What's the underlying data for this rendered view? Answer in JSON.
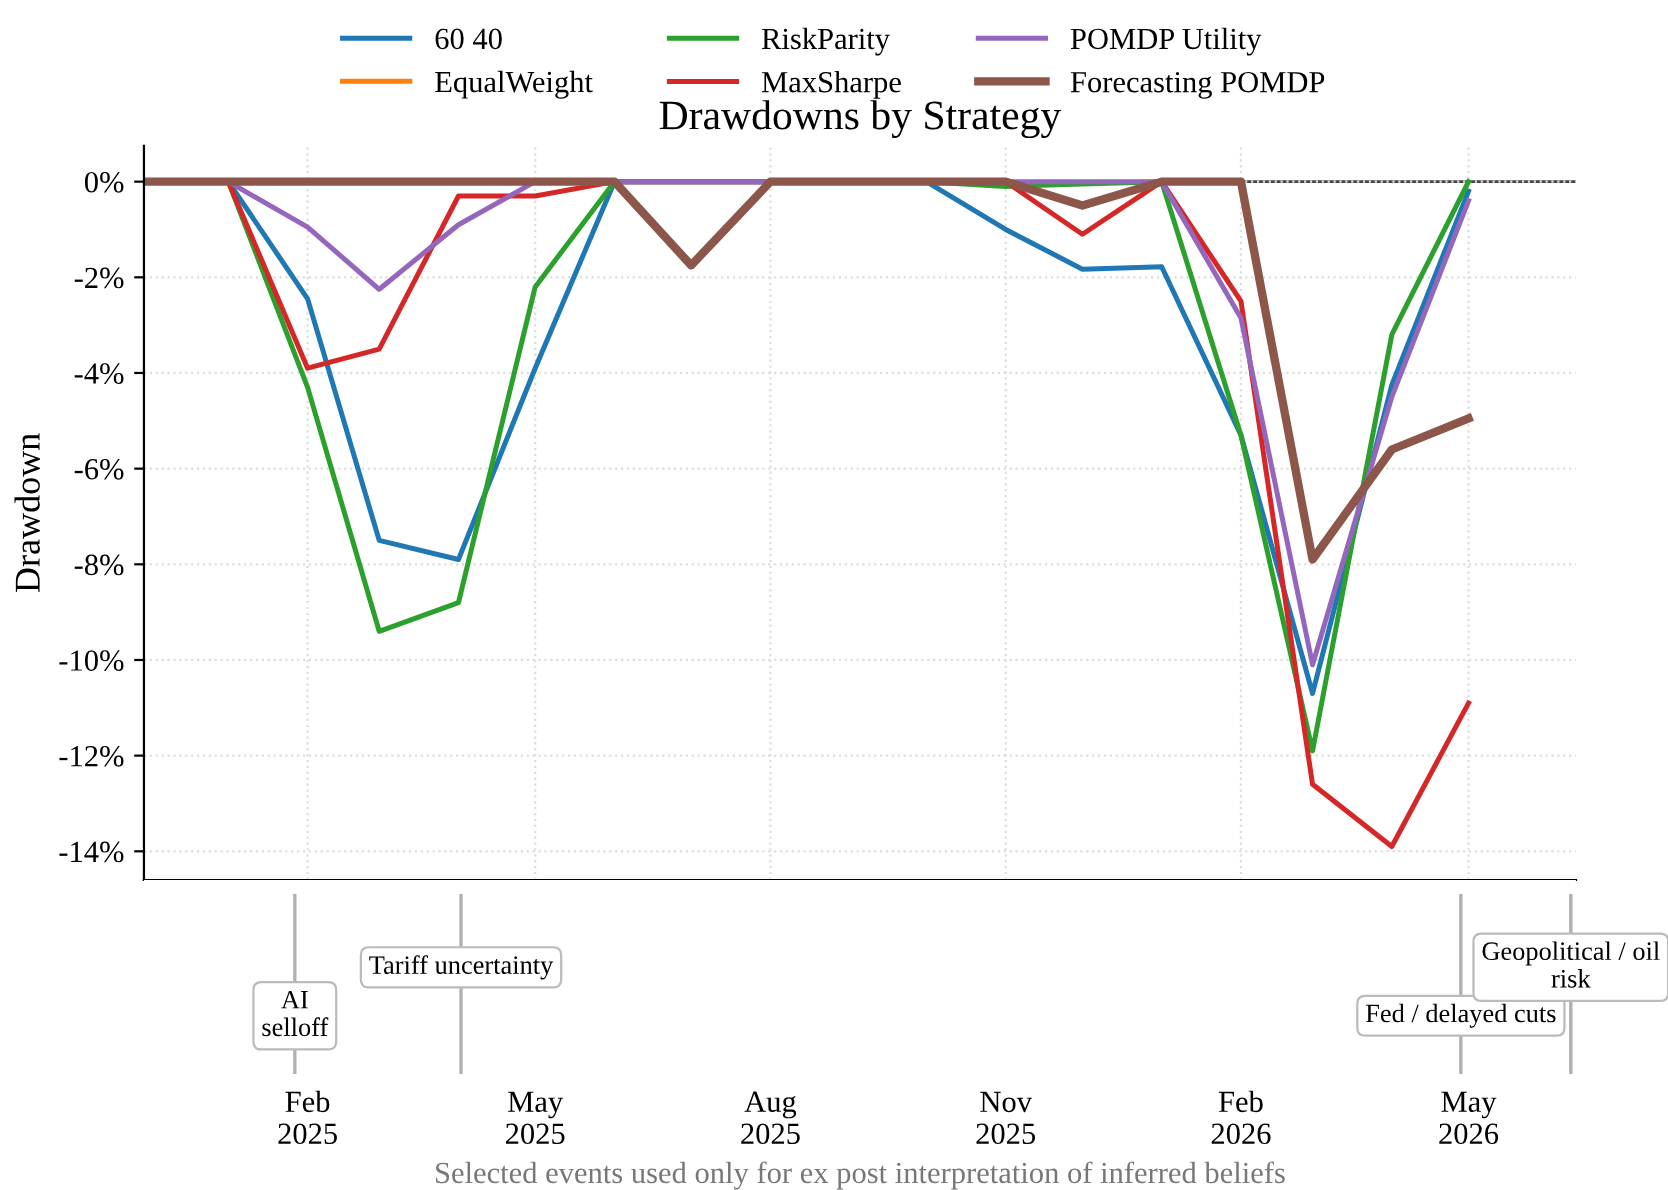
{
  "chart_data": {
    "type": "line",
    "title": "Drawdowns by Strategy",
    "ylabel": "Drawdown",
    "xlabel": "Selected events used only for ex post interpretation of inferred beliefs",
    "x": [
      "2024-12",
      "2025-01",
      "2025-02",
      "2025-03",
      "2025-04",
      "2025-05",
      "2025-06",
      "2025-07",
      "2025-08",
      "2025-09",
      "2025-10",
      "2025-11",
      "2025-12",
      "2026-01",
      "2026-02",
      "2026-03",
      "2026-04",
      "2026-05"
    ],
    "series": [
      {
        "name": "60 40",
        "color": "#1f77b4",
        "values": [
          0,
          0,
          -2.45,
          -7.5,
          -7.9,
          -3.9,
          0,
          0,
          0,
          0,
          0,
          -1.0,
          -1.83,
          -1.78,
          -5.3,
          -10.7,
          -4.25,
          -0.2
        ]
      },
      {
        "name": "EqualWeight",
        "color": "#ff7f0e",
        "values": [
          null,
          null,
          null,
          null,
          null,
          null,
          null,
          null,
          null,
          null,
          null,
          null,
          null,
          null,
          null,
          null,
          null,
          null
        ]
      },
      {
        "name": "RiskParity",
        "color": "#2ca02c",
        "values": [
          0,
          0,
          -4.3,
          -9.4,
          -8.8,
          -2.2,
          0,
          0,
          0,
          0,
          0,
          -0.1,
          -0.05,
          0,
          -5.3,
          -11.9,
          -3.2,
          0
        ]
      },
      {
        "name": "MaxSharpe",
        "color": "#d62728",
        "values": [
          0,
          0,
          -3.9,
          -3.5,
          -0.3,
          -0.3,
          0,
          0,
          0,
          0,
          0,
          0,
          -1.1,
          0,
          -2.5,
          -12.6,
          -13.9,
          -10.9
        ]
      },
      {
        "name": "POMDP Utility",
        "color": "#9467bd",
        "values": [
          0,
          0,
          -0.95,
          -2.25,
          -0.9,
          0,
          0,
          0,
          0,
          0,
          0,
          0,
          0,
          0,
          -2.85,
          -10.1,
          -4.5,
          -0.4
        ]
      },
      {
        "name": "Forecasting POMDP",
        "color": "#8c564b",
        "values": [
          0,
          0,
          0,
          0,
          0,
          0,
          0,
          -1.75,
          0,
          0,
          0,
          0,
          -0.5,
          0,
          0,
          -7.9,
          -5.6,
          -4.95
        ]
      }
    ],
    "xlim": [
      "2024-11-29",
      "2026-06-12"
    ],
    "xticks": [
      {
        "value": "2025-02",
        "label": "Feb\n2025"
      },
      {
        "value": "2025-05",
        "label": "May\n2025"
      },
      {
        "value": "2025-08",
        "label": "Aug\n2025"
      },
      {
        "value": "2025-11",
        "label": "Nov\n2025"
      },
      {
        "value": "2026-02",
        "label": "Feb\n2026"
      },
      {
        "value": "2026-05",
        "label": "May\n2026"
      }
    ],
    "ylim": [
      -14.6,
      0.75
    ],
    "yticks": [
      {
        "value": 0,
        "label": "0%"
      },
      {
        "value": -2,
        "label": "-2%"
      },
      {
        "value": -4,
        "label": "-4%"
      },
      {
        "value": -6,
        "label": "-6%"
      },
      {
        "value": -8,
        "label": "-8%"
      },
      {
        "value": -10,
        "label": "-10%"
      },
      {
        "value": -12,
        "label": "-12%"
      },
      {
        "value": -14,
        "label": "-14%"
      }
    ],
    "ref_lines": [
      {
        "axis": "y",
        "value": 0,
        "color": "#444444"
      },
      {
        "axis": "x",
        "value": "2025-01-27",
        "label": "AI\nselloff",
        "color": "#b0b0b0"
      },
      {
        "axis": "x",
        "value": "2025-04-02",
        "label": "Tariff uncertainty",
        "color": "#b0b0b0"
      },
      {
        "axis": "x",
        "value": "2026-04-28",
        "label": "Fed / delayed cuts",
        "color": "#b0b0b0"
      },
      {
        "axis": "x",
        "value": "2026-06-10",
        "label": "Geopolitical / oil\nrisk",
        "color": "#b0b0b0"
      }
    ],
    "grid": true,
    "legend": "top",
    "line_style": "solid",
    "marker": "none"
  }
}
